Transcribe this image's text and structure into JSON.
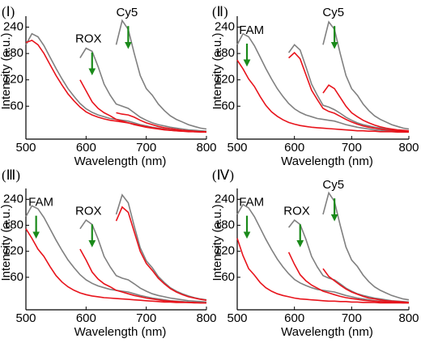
{
  "chart_data": [
    {
      "type": "line",
      "panel_label": "(Ⅰ)",
      "xlabel": "Wavelength (nm)",
      "ylabel": "Intensity (a.u.)",
      "annotations": [
        "ROX",
        "Cy5"
      ],
      "xlim": [
        500,
        800
      ],
      "ylim": [
        -15,
        265
      ],
      "xticks": [
        500,
        600,
        700,
        800
      ],
      "yticks": [
        60,
        120,
        180,
        240
      ],
      "x": [
        500,
        510,
        520,
        530,
        540,
        550,
        560,
        570,
        580,
        590,
        600,
        610,
        620,
        630,
        640,
        650,
        660,
        670,
        680,
        690,
        700,
        710,
        720,
        730,
        740,
        750,
        760,
        770,
        780,
        790,
        800
      ],
      "series": [
        {
          "color": "#808080",
          "values": [
            200,
            225,
            218,
            198,
            172,
            146,
            122,
            100,
            82,
            66,
            54,
            46,
            40,
            36,
            32,
            30,
            28,
            26,
            22,
            18,
            15,
            12,
            10,
            8,
            6,
            5,
            4,
            3,
            2,
            2,
            1
          ]
        },
        {
          "color": "#e8141c",
          "values": [
            205,
            210,
            200,
            180,
            155,
            130,
            108,
            88,
            72,
            58,
            47,
            40,
            35,
            31,
            28,
            26,
            24,
            22,
            19,
            16,
            13,
            11,
            9,
            7,
            5,
            4,
            3,
            3,
            2,
            2,
            1
          ]
        },
        {
          "color": "#808080",
          "values": [
            null,
            null,
            null,
            null,
            null,
            null,
            null,
            null,
            null,
            170,
            192,
            185,
            150,
            110,
            85,
            65,
            60,
            55,
            45,
            35,
            28,
            22,
            18,
            15,
            12,
            10,
            8,
            6,
            5,
            4,
            3
          ]
        },
        {
          "color": "#e8141c",
          "values": [
            null,
            null,
            null,
            null,
            null,
            null,
            null,
            null,
            null,
            120,
            95,
            70,
            55,
            45,
            38,
            30,
            26,
            22,
            18,
            15,
            12,
            10,
            8,
            6,
            5,
            4,
            3,
            2,
            2,
            1,
            1
          ]
        },
        {
          "color": "#808080",
          "values": [
            null,
            null,
            null,
            null,
            null,
            null,
            null,
            null,
            null,
            null,
            null,
            null,
            null,
            null,
            null,
            200,
            255,
            235,
            180,
            130,
            100,
            85,
            65,
            50,
            38,
            30,
            24,
            18,
            14,
            10,
            8
          ]
        },
        {
          "color": "#e8141c",
          "values": [
            null,
            null,
            null,
            null,
            null,
            null,
            null,
            null,
            null,
            null,
            null,
            null,
            null,
            null,
            null,
            45,
            42,
            40,
            35,
            28,
            22,
            18,
            14,
            11,
            9,
            7,
            5,
            4,
            3,
            2,
            2
          ]
        }
      ]
    },
    {
      "type": "line",
      "panel_label": "(Ⅱ)",
      "xlabel": "Wavelength (nm)",
      "ylabel": "Intensity (a.u.)",
      "annotations": [
        "FAM",
        "Cy5"
      ],
      "xlim": [
        500,
        800
      ],
      "ylim": [
        -15,
        265
      ],
      "xticks": [
        500,
        600,
        700,
        800
      ],
      "yticks": [
        60,
        120,
        180,
        240
      ],
      "x": [
        500,
        510,
        520,
        530,
        540,
        550,
        560,
        570,
        580,
        590,
        600,
        610,
        620,
        630,
        640,
        650,
        660,
        670,
        680,
        690,
        700,
        710,
        720,
        730,
        740,
        750,
        760,
        770,
        780,
        790,
        800
      ],
      "series": [
        {
          "color": "#808080",
          "values": [
            200,
            225,
            218,
            198,
            172,
            146,
            122,
            100,
            82,
            66,
            54,
            46,
            40,
            36,
            32,
            30,
            28,
            26,
            22,
            18,
            15,
            12,
            10,
            8,
            6,
            5,
            4,
            3,
            2,
            2,
            1
          ]
        },
        {
          "color": "#e8141c",
          "values": [
            165,
            145,
            122,
            105,
            82,
            62,
            47,
            37,
            29,
            23,
            19,
            16,
            14,
            12,
            11,
            10,
            9,
            8,
            7,
            6,
            5,
            4,
            4,
            3,
            3,
            2,
            2,
            2,
            1,
            1,
            1
          ]
        },
        {
          "color": "#808080",
          "values": [
            null,
            null,
            null,
            null,
            null,
            null,
            null,
            null,
            null,
            182,
            200,
            188,
            150,
            110,
            85,
            62,
            58,
            52,
            44,
            35,
            28,
            22,
            18,
            15,
            12,
            10,
            8,
            6,
            5,
            4,
            3
          ]
        },
        {
          "color": "#e8141c",
          "values": [
            null,
            null,
            null,
            null,
            null,
            null,
            null,
            null,
            null,
            170,
            182,
            168,
            132,
            96,
            75,
            55,
            48,
            44,
            37,
            30,
            24,
            19,
            15,
            12,
            10,
            8,
            6,
            5,
            4,
            3,
            3
          ]
        },
        {
          "color": "#808080",
          "values": [
            null,
            null,
            null,
            null,
            null,
            null,
            null,
            null,
            null,
            null,
            null,
            null,
            null,
            null,
            null,
            200,
            252,
            235,
            180,
            130,
            100,
            85,
            65,
            50,
            38,
            30,
            24,
            18,
            14,
            10,
            8
          ]
        },
        {
          "color": "#e8141c",
          "values": [
            null,
            null,
            null,
            null,
            null,
            null,
            null,
            null,
            null,
            null,
            null,
            null,
            null,
            null,
            null,
            90,
            108,
            100,
            80,
            60,
            45,
            36,
            28,
            22,
            17,
            13,
            10,
            8,
            6,
            5,
            4
          ]
        }
      ]
    },
    {
      "type": "line",
      "panel_label": "(Ⅲ)",
      "xlabel": "Wavelength (nm)",
      "ylabel": "Intensity (a.u.)",
      "annotations": [
        "FAM",
        "ROX"
      ],
      "xlim": [
        500,
        800
      ],
      "ylim": [
        -15,
        265
      ],
      "xticks": [
        500,
        600,
        700,
        800
      ],
      "yticks": [
        60,
        120,
        180,
        240
      ],
      "x": [
        500,
        510,
        520,
        530,
        540,
        550,
        560,
        570,
        580,
        590,
        600,
        610,
        620,
        630,
        640,
        650,
        660,
        670,
        680,
        690,
        700,
        710,
        720,
        730,
        740,
        750,
        760,
        770,
        780,
        790,
        800
      ],
      "series": [
        {
          "color": "#808080",
          "values": [
            200,
            225,
            218,
            198,
            172,
            146,
            122,
            100,
            82,
            66,
            54,
            46,
            40,
            36,
            32,
            30,
            28,
            26,
            22,
            18,
            15,
            12,
            10,
            8,
            6,
            5,
            4,
            3,
            2,
            2,
            1
          ]
        },
        {
          "color": "#e8141c",
          "values": [
            172,
            150,
            125,
            108,
            85,
            64,
            49,
            38,
            30,
            24,
            20,
            17,
            15,
            13,
            12,
            11,
            10,
            9,
            8,
            7,
            6,
            5,
            4,
            3,
            3,
            2,
            2,
            2,
            1,
            1,
            1
          ]
        },
        {
          "color": "#808080",
          "values": [
            null,
            null,
            null,
            null,
            null,
            null,
            null,
            null,
            null,
            172,
            192,
            182,
            148,
            108,
            84,
            64,
            58,
            54,
            45,
            35,
            28,
            22,
            18,
            15,
            12,
            10,
            8,
            6,
            5,
            4,
            3
          ]
        },
        {
          "color": "#e8141c",
          "values": [
            null,
            null,
            null,
            null,
            null,
            null,
            null,
            null,
            null,
            125,
            100,
            72,
            56,
            45,
            38,
            30,
            26,
            22,
            18,
            15,
            12,
            10,
            8,
            6,
            5,
            4,
            3,
            2,
            2,
            1,
            1
          ]
        },
        {
          "color": "#808080",
          "values": [
            null,
            null,
            null,
            null,
            null,
            null,
            null,
            null,
            null,
            null,
            null,
            null,
            null,
            null,
            null,
            205,
            250,
            232,
            178,
            128,
            98,
            82,
            62,
            48,
            36,
            28,
            22,
            17,
            13,
            10,
            8
          ]
        },
        {
          "color": "#e8141c",
          "values": [
            null,
            null,
            null,
            null,
            null,
            null,
            null,
            null,
            null,
            null,
            null,
            null,
            null,
            null,
            null,
            190,
            222,
            210,
            165,
            120,
            92,
            76,
            58,
            45,
            34,
            26,
            20,
            15,
            12,
            9,
            7
          ]
        }
      ]
    },
    {
      "type": "line",
      "panel_label": "(Ⅳ)",
      "xlabel": "Wavelength (nm)",
      "ylabel": "Intensity (a.u.)",
      "annotations": [
        "FAM",
        "ROX",
        "Cy5"
      ],
      "xlim": [
        500,
        800
      ],
      "ylim": [
        -15,
        265
      ],
      "xticks": [
        500,
        600,
        700,
        800
      ],
      "yticks": [
        60,
        120,
        180,
        240
      ],
      "x": [
        500,
        510,
        520,
        530,
        540,
        550,
        560,
        570,
        580,
        590,
        600,
        610,
        620,
        630,
        640,
        650,
        660,
        670,
        680,
        690,
        700,
        710,
        720,
        730,
        740,
        750,
        760,
        770,
        780,
        790,
        800
      ],
      "series": [
        {
          "color": "#808080",
          "values": [
            205,
            228,
            220,
            200,
            174,
            148,
            124,
            102,
            84,
            68,
            55,
            47,
            41,
            36,
            32,
            30,
            28,
            26,
            22,
            18,
            15,
            12,
            10,
            8,
            6,
            5,
            4,
            3,
            2,
            2,
            1
          ]
        },
        {
          "color": "#e8141c",
          "values": [
            150,
            110,
            80,
            65,
            48,
            36,
            28,
            22,
            18,
            15,
            12,
            10,
            9,
            8,
            7,
            6,
            5,
            5,
            4,
            4,
            3,
            3,
            2,
            2,
            2,
            1,
            1,
            1,
            1,
            1,
            1
          ]
        },
        {
          "color": "#808080",
          "values": [
            null,
            null,
            null,
            null,
            null,
            null,
            null,
            null,
            null,
            175,
            192,
            182,
            148,
            108,
            84,
            64,
            58,
            54,
            45,
            35,
            28,
            22,
            18,
            15,
            12,
            10,
            8,
            6,
            5,
            4,
            3
          ]
        },
        {
          "color": "#e8141c",
          "values": [
            null,
            null,
            null,
            null,
            null,
            null,
            null,
            null,
            null,
            118,
            90,
            66,
            52,
            42,
            35,
            28,
            24,
            20,
            16,
            13,
            11,
            9,
            7,
            6,
            5,
            4,
            3,
            2,
            2,
            1,
            1
          ]
        },
        {
          "color": "#808080",
          "values": [
            null,
            null,
            null,
            null,
            null,
            null,
            null,
            null,
            null,
            null,
            null,
            null,
            null,
            null,
            null,
            205,
            255,
            235,
            180,
            130,
            100,
            85,
            65,
            50,
            38,
            30,
            24,
            18,
            14,
            10,
            8
          ]
        },
        {
          "color": "#e8141c",
          "values": [
            null,
            null,
            null,
            null,
            null,
            null,
            null,
            null,
            null,
            null,
            null,
            null,
            null,
            null,
            null,
            80,
            62,
            52,
            42,
            33,
            26,
            21,
            16,
            12,
            10,
            8,
            6,
            5,
            4,
            3,
            2
          ]
        }
      ]
    }
  ]
}
